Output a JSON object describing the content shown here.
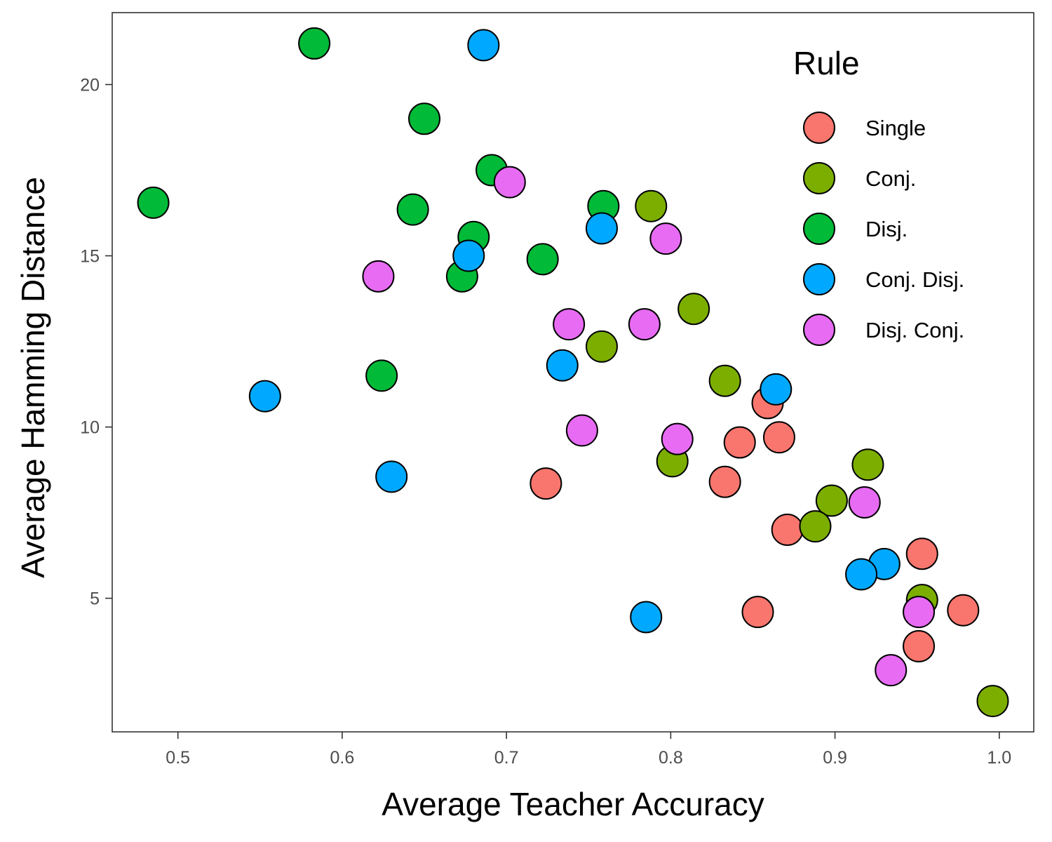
{
  "chart_data": {
    "type": "scatter",
    "xlabel": "Average Teacher Accuracy",
    "ylabel": "Average Hamming Distance",
    "xlim": [
      0.46,
      1.021
    ],
    "ylim": [
      1.1,
      22.1
    ],
    "x_ticks": [
      0.5,
      0.6,
      0.7,
      0.8,
      0.9,
      1.0
    ],
    "x_tick_labels": [
      "0.5",
      "0.6",
      "0.7",
      "0.8",
      "0.9",
      "1.0"
    ],
    "y_ticks": [
      5,
      10,
      15,
      20
    ],
    "y_tick_labels": [
      "5",
      "10",
      "15",
      "20"
    ],
    "grid": false,
    "legend": {
      "title": "Rule",
      "placement": "top-right, inside plot"
    },
    "series": [
      {
        "name": "Single",
        "color": "#F8766D",
        "points": [
          [
            0.724,
            8.35
          ],
          [
            0.833,
            8.4
          ],
          [
            0.842,
            9.55
          ],
          [
            0.859,
            10.7
          ],
          [
            0.866,
            9.7
          ],
          [
            0.871,
            7.0
          ],
          [
            0.853,
            4.6
          ],
          [
            0.953,
            6.3
          ],
          [
            0.951,
            3.6
          ],
          [
            0.978,
            4.65
          ]
        ]
      },
      {
        "name": "Conj.",
        "color": "#7CAE00",
        "points": [
          [
            0.788,
            16.45
          ],
          [
            0.814,
            13.45
          ],
          [
            0.758,
            12.35
          ],
          [
            0.833,
            11.35
          ],
          [
            0.801,
            9.0
          ],
          [
            0.92,
            8.9
          ],
          [
            0.898,
            7.85
          ],
          [
            0.888,
            7.1
          ],
          [
            0.953,
            4.95
          ],
          [
            0.996,
            2.0
          ]
        ]
      },
      {
        "name": "Disj.",
        "color": "#00BA38",
        "points": [
          [
            0.583,
            21.2
          ],
          [
            0.65,
            19.0
          ],
          [
            0.691,
            17.5
          ],
          [
            0.485,
            16.55
          ],
          [
            0.643,
            16.35
          ],
          [
            0.759,
            16.45
          ],
          [
            0.68,
            15.55
          ],
          [
            0.722,
            14.9
          ],
          [
            0.673,
            14.4
          ],
          [
            0.624,
            11.5
          ]
        ]
      },
      {
        "name": "Conj. Disj.",
        "color": "#00A9FF",
        "points": [
          [
            0.686,
            21.15
          ],
          [
            0.758,
            15.8
          ],
          [
            0.677,
            15.0
          ],
          [
            0.734,
            11.8
          ],
          [
            0.553,
            10.9
          ],
          [
            0.864,
            11.1
          ],
          [
            0.63,
            8.55
          ],
          [
            0.93,
            6.0
          ],
          [
            0.916,
            5.7
          ],
          [
            0.785,
            4.45
          ]
        ]
      },
      {
        "name": "Disj. Conj.",
        "color": "#E76BF3",
        "points": [
          [
            0.702,
            17.15
          ],
          [
            0.797,
            15.5
          ],
          [
            0.622,
            14.4
          ],
          [
            0.738,
            13.0
          ],
          [
            0.784,
            13.0
          ],
          [
            0.746,
            9.9
          ],
          [
            0.804,
            9.65
          ],
          [
            0.918,
            7.8
          ],
          [
            0.951,
            4.6
          ],
          [
            0.934,
            2.9
          ]
        ]
      }
    ]
  }
}
